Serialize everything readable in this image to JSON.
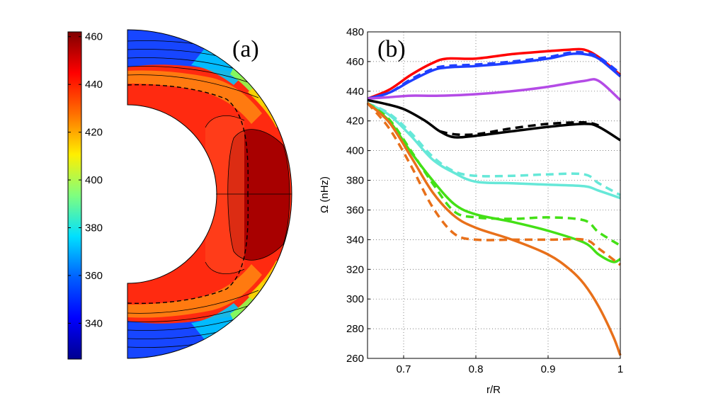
{
  "chart_data": [
    {
      "panel_label": "(a)",
      "type": "heatmap",
      "description_kind": "meridional contour plot of rotation rate",
      "colorbar": {
        "min": 325,
        "max": 462,
        "ticks": [
          340,
          360,
          380,
          400,
          420,
          440,
          460
        ],
        "tick_labels": [
          "340",
          "360",
          "380",
          "400",
          "420",
          "440",
          "460"
        ],
        "colormap": [
          "#00008f",
          "#0000ff",
          "#007fff",
          "#00ffff",
          "#7fff7f",
          "#ffff00",
          "#ff7f00",
          "#ff0000",
          "#7f0000"
        ]
      },
      "contour_levels": [
        340,
        350,
        360,
        370,
        380,
        390,
        400,
        410,
        420,
        430,
        440,
        450,
        460
      ],
      "inner_radius_fraction": 0.57
    },
    {
      "panel_label": "(b)",
      "type": "line",
      "xlabel": "r/R",
      "ylabel": "Ω (nHz)",
      "xlim": [
        0.65,
        1.0
      ],
      "ylim": [
        260,
        480
      ],
      "xticks": [
        0.7,
        0.8,
        0.9,
        1.0
      ],
      "xtick_labels": [
        "0.7",
        "0.8",
        "0.9",
        "1"
      ],
      "yticks": [
        260,
        280,
        300,
        320,
        340,
        360,
        380,
        400,
        420,
        440,
        460,
        480
      ],
      "ytick_labels": [
        "260",
        "280",
        "300",
        "320",
        "340",
        "360",
        "380",
        "400",
        "420",
        "440",
        "460",
        "480"
      ],
      "grid": true,
      "series": [
        {
          "name": "red-solid",
          "color": "#ff0000",
          "style": "solid",
          "x": [
            0.65,
            0.68,
            0.71,
            0.74,
            0.76,
            0.8,
            0.85,
            0.9,
            0.93,
            0.95,
            0.97,
            1.0
          ],
          "y": [
            435,
            441,
            451,
            459,
            462,
            462,
            465,
            467,
            468,
            468,
            463,
            451
          ]
        },
        {
          "name": "blue-solid",
          "color": "#1f3fff",
          "style": "solid",
          "x": [
            0.65,
            0.68,
            0.71,
            0.74,
            0.76,
            0.8,
            0.85,
            0.9,
            0.93,
            0.95,
            0.97,
            1.0
          ],
          "y": [
            435,
            439,
            447,
            454,
            456,
            457,
            459,
            462,
            465,
            465,
            462,
            450
          ]
        },
        {
          "name": "blue-dashed",
          "color": "#1f3fff",
          "style": "dashed",
          "x": [
            0.65,
            0.68,
            0.71,
            0.74,
            0.76,
            0.8,
            0.85,
            0.9,
            0.93,
            0.95,
            0.97,
            1.0
          ],
          "y": [
            435,
            439,
            448,
            455,
            457,
            458,
            460,
            463,
            466,
            466,
            463,
            452
          ]
        },
        {
          "name": "purple-solid",
          "color": "#b44be6",
          "style": "solid",
          "x": [
            0.65,
            0.68,
            0.71,
            0.75,
            0.8,
            0.85,
            0.9,
            0.95,
            0.97,
            1.0
          ],
          "y": [
            435,
            436,
            437,
            437,
            438,
            440,
            443,
            447,
            447,
            434
          ]
        },
        {
          "name": "black-solid",
          "color": "#000000",
          "style": "solid",
          "x": [
            0.65,
            0.67,
            0.7,
            0.73,
            0.75,
            0.77,
            0.8,
            0.85,
            0.9,
            0.95,
            0.97,
            1.0
          ],
          "y": [
            434,
            432,
            428,
            420,
            413,
            409,
            410,
            413,
            416,
            418,
            416,
            407
          ]
        },
        {
          "name": "black-dashed",
          "color": "#000000",
          "style": "dashed",
          "x": [
            0.75,
            0.77,
            0.8,
            0.85,
            0.9,
            0.95,
            0.97
          ],
          "y": [
            413,
            411,
            411,
            415,
            418,
            419,
            417
          ]
        },
        {
          "name": "cyan-solid",
          "color": "#66e8d8",
          "style": "solid",
          "x": [
            0.65,
            0.68,
            0.71,
            0.74,
            0.77,
            0.8,
            0.85,
            0.9,
            0.95,
            0.97,
            1.0
          ],
          "y": [
            432,
            424,
            410,
            394,
            385,
            379,
            378,
            377,
            376,
            373,
            368
          ]
        },
        {
          "name": "cyan-dashed",
          "color": "#66e8d8",
          "style": "dashed",
          "x": [
            0.65,
            0.68,
            0.71,
            0.74,
            0.77,
            0.8,
            0.85,
            0.9,
            0.95,
            0.97,
            1.0
          ],
          "y": [
            432,
            425,
            412,
            396,
            386,
            383,
            383,
            384,
            384,
            378,
            370
          ]
        },
        {
          "name": "green-solid",
          "color": "#44e016",
          "style": "solid",
          "x": [
            0.65,
            0.68,
            0.71,
            0.74,
            0.77,
            0.8,
            0.85,
            0.9,
            0.95,
            0.97,
            0.99,
            1.0
          ],
          "y": [
            432,
            420,
            399,
            380,
            364,
            357,
            352,
            346,
            338,
            330,
            325,
            327
          ]
        },
        {
          "name": "green-dashed",
          "color": "#44e016",
          "style": "dashed",
          "x": [
            0.65,
            0.68,
            0.71,
            0.74,
            0.77,
            0.8,
            0.85,
            0.9,
            0.95,
            0.97,
            1.0
          ],
          "y": [
            432,
            421,
            400,
            378,
            359,
            355,
            354,
            355,
            353,
            345,
            336
          ]
        },
        {
          "name": "orange-solid",
          "color": "#e8701a",
          "style": "solid",
          "x": [
            0.65,
            0.68,
            0.71,
            0.74,
            0.77,
            0.8,
            0.85,
            0.9,
            0.93,
            0.95,
            0.97,
            0.99,
            1.0
          ],
          "y": [
            432,
            419,
            396,
            372,
            356,
            348,
            340,
            330,
            320,
            310,
            295,
            275,
            262
          ]
        },
        {
          "name": "orange-dashed",
          "color": "#e8701a",
          "style": "dashed",
          "x": [
            0.65,
            0.68,
            0.71,
            0.74,
            0.77,
            0.8,
            0.85,
            0.9,
            0.95,
            0.97,
            1.0
          ],
          "y": [
            432,
            415,
            390,
            362,
            344,
            340,
            340,
            340,
            340,
            334,
            323
          ]
        }
      ]
    }
  ]
}
